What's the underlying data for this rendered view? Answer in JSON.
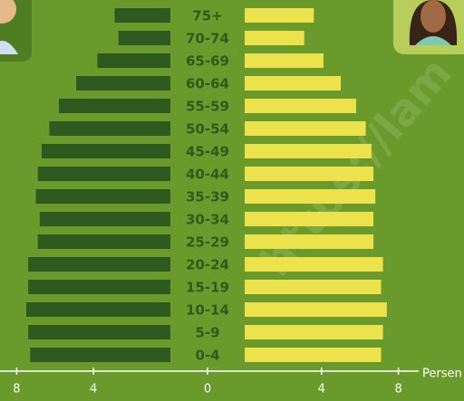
{
  "chart_data": {
    "type": "pyramid",
    "categories": [
      "75+",
      "70-74",
      "65-69",
      "60-64",
      "55-59",
      "50-54",
      "45-49",
      "40-44",
      "35-39",
      "30-34",
      "25-29",
      "20-24",
      "15-19",
      "10-14",
      "5-9",
      "0-4"
    ],
    "series": [
      {
        "color": "#2e5a1f",
        "values": [
          2.9,
          2.7,
          3.8,
          4.9,
          5.8,
          6.3,
          6.7,
          6.9,
          7.0,
          6.8,
          6.9,
          7.4,
          7.4,
          7.5,
          7.4,
          7.3
        ]
      },
      {
        "color": "#ebe24c",
        "values": [
          3.6,
          3.1,
          4.1,
          5.0,
          5.8,
          6.3,
          6.6,
          6.7,
          6.8,
          6.7,
          6.7,
          7.2,
          7.1,
          7.4,
          7.2,
          7.1
        ]
      }
    ],
    "xticks": [
      {
        "value": -8,
        "label": "8"
      },
      {
        "value": -4,
        "label": "4"
      },
      0,
      4,
      8
    ],
    "xlabel": "Persen",
    "watermark": "https://lam"
  }
}
